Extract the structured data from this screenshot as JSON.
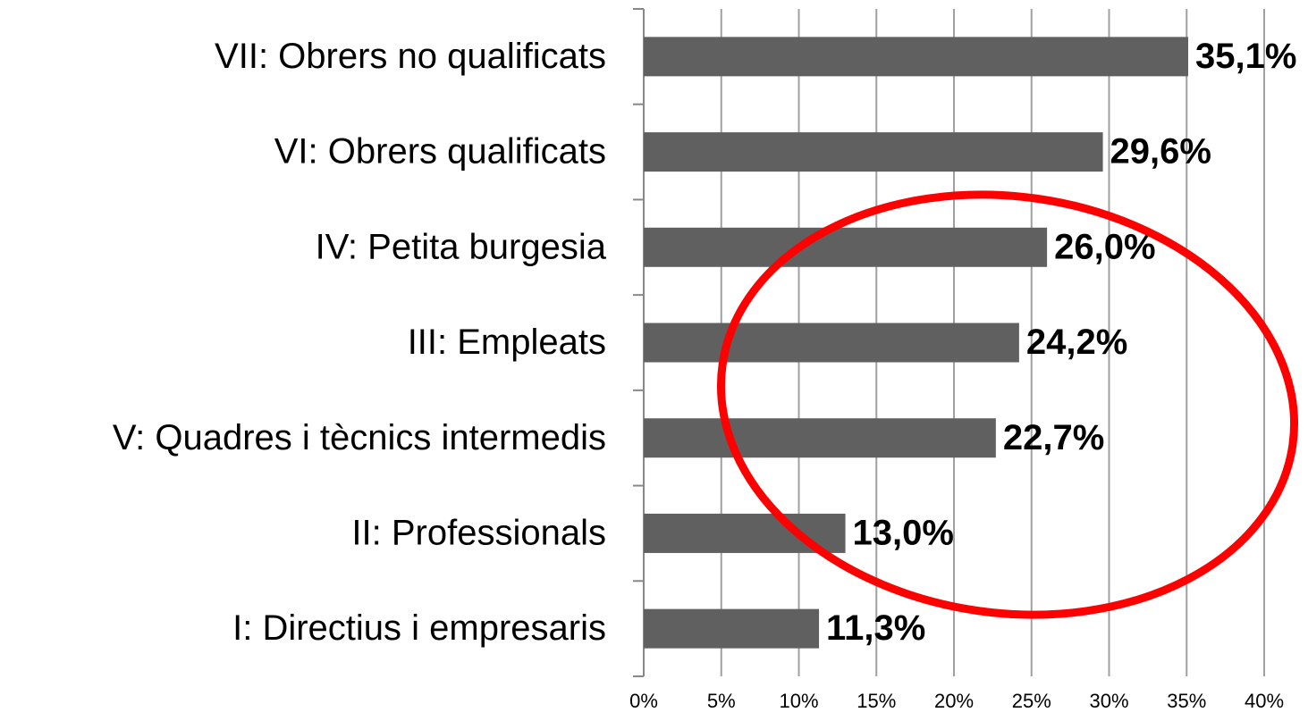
{
  "chart_data": {
    "type": "hbar",
    "categories": [
      "VII: Obrers no qualificats",
      "VI: Obrers qualificats",
      "IV: Petita burgesia",
      "III: Empleats",
      "V: Quadres i tècnics intermedis",
      "II: Professionals",
      "I: Directius i empresaris"
    ],
    "values": [
      35.1,
      29.6,
      26.0,
      24.2,
      22.7,
      13.0,
      11.3
    ],
    "value_labels": [
      "35,1%",
      "29,6%",
      "26,0%",
      "24,2%",
      "22,7%",
      "13,0%",
      "11,3%"
    ],
    "color": "#606060",
    "xlim": [
      0,
      40
    ],
    "xticks": [
      {
        "value": 0,
        "label": "0%"
      },
      {
        "value": 5,
        "label": "5%"
      },
      {
        "value": 10,
        "label": "10%"
      },
      {
        "value": 15,
        "label": "15%"
      },
      {
        "value": 20,
        "label": "20%"
      },
      {
        "value": 25,
        "label": "25%"
      },
      {
        "value": 30,
        "label": "30%"
      },
      {
        "value": 35,
        "label": "35%"
      },
      {
        "value": 40,
        "label": "40%"
      }
    ],
    "grid": true
  }
}
